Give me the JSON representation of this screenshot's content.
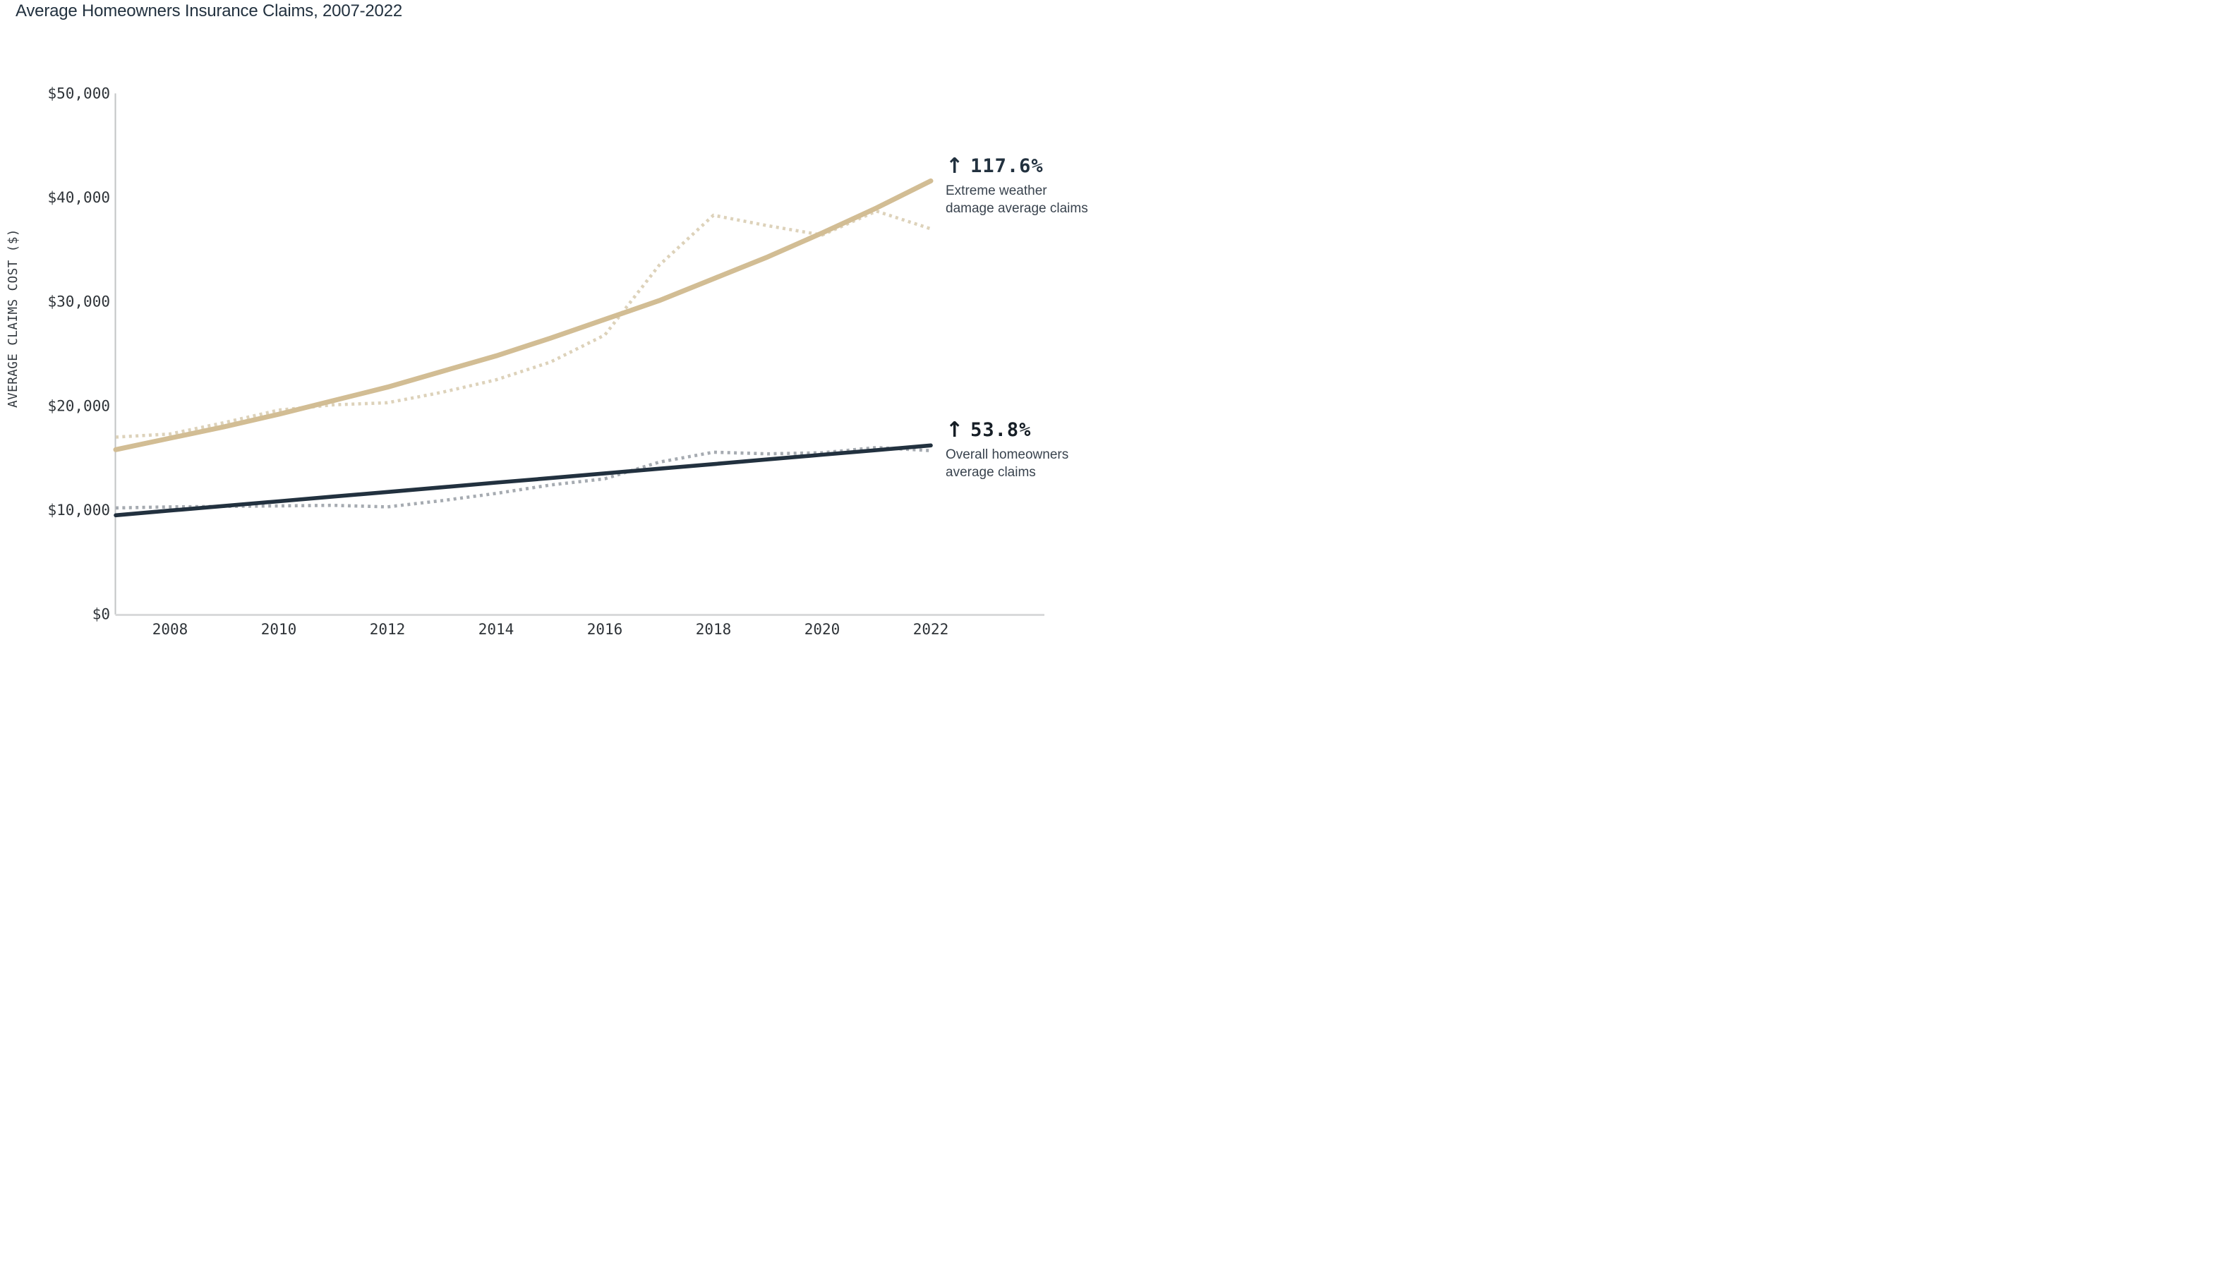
{
  "title": "Average Homeowners Insurance Claims, 2007-2022",
  "y_axis_title": "AVERAGE CLAIMS COST ($)",
  "annotations": {
    "extreme": {
      "arrow": "↑",
      "pct": "117.6%",
      "label_line1": "Extreme weather",
      "label_line2": "damage average claims",
      "pct_color": "#22313f"
    },
    "overall": {
      "arrow": "↑",
      "pct": "53.8%",
      "label_line1": "Overall homeowners",
      "label_line2": "average claims",
      "pct_color": "#161e26"
    }
  },
  "colors": {
    "extreme_trend": "#d2bd94",
    "extreme_actual": "#ddd2ba",
    "overall_trend": "#22313f",
    "overall_actual": "#a6abb1",
    "axis_line": "#c2c4c6",
    "baseline": "#d8d9da",
    "tick_text": "#2e3338",
    "axis_title_text": "#33393f",
    "title_text": "#22313f"
  },
  "chart_data": {
    "type": "line",
    "title": "Average Homeowners Insurance Claims, 2007-2022",
    "xlabel": "",
    "ylabel": "AVERAGE CLAIMS COST ($)",
    "x": [
      2007,
      2008,
      2009,
      2010,
      2011,
      2012,
      2013,
      2014,
      2015,
      2016,
      2017,
      2018,
      2019,
      2020,
      2021,
      2022
    ],
    "xlim": [
      2007,
      2022
    ],
    "ylim": [
      0,
      50000
    ],
    "x_tick_years": [
      2008,
      2010,
      2012,
      2014,
      2016,
      2018,
      2020,
      2022
    ],
    "x_tick_labels": [
      "2008",
      "2010",
      "2012",
      "2014",
      "2016",
      "2018",
      "2020",
      "2022"
    ],
    "y_tick_values": [
      0,
      10000,
      20000,
      30000,
      40000,
      50000
    ],
    "y_tick_labels": [
      "$0",
      "$10,000",
      "$20,000",
      "$30,000",
      "$40,000",
      "$50,000"
    ],
    "grid": false,
    "legend_position": "right-annotations",
    "series": [
      {
        "name": "Extreme weather damage average claims (actual)",
        "style": "dotted",
        "color_key": "extreme_actual",
        "change_pct": "117.6%",
        "values": [
          17000,
          17300,
          18400,
          19600,
          20100,
          20300,
          21300,
          22500,
          24200,
          26800,
          33500,
          38300,
          37300,
          36400,
          38700,
          37000
        ]
      },
      {
        "name": "Extreme weather damage average claims (trend)",
        "style": "solid",
        "color_key": "extreme_trend",
        "values": [
          15800,
          16900,
          18000,
          19200,
          20500,
          21800,
          23300,
          24800,
          26500,
          28300,
          30100,
          32200,
          34300,
          36600,
          39000,
          41600
        ]
      },
      {
        "name": "Overall homeowners average claims (actual)",
        "style": "dotted",
        "color_key": "overall_actual",
        "change_pct": "53.8%",
        "values": [
          10200,
          10300,
          10350,
          10400,
          10450,
          10300,
          10900,
          11600,
          12400,
          13000,
          14600,
          15550,
          15400,
          15500,
          16000,
          15700
        ]
      },
      {
        "name": "Overall homeowners average claims (trend)",
        "style": "solid",
        "color_key": "overall_trend",
        "values": [
          9500,
          9950,
          10390,
          10840,
          11290,
          11730,
          12180,
          12630,
          13070,
          13520,
          13970,
          14410,
          14860,
          15310,
          15750,
          16200
        ]
      }
    ]
  }
}
